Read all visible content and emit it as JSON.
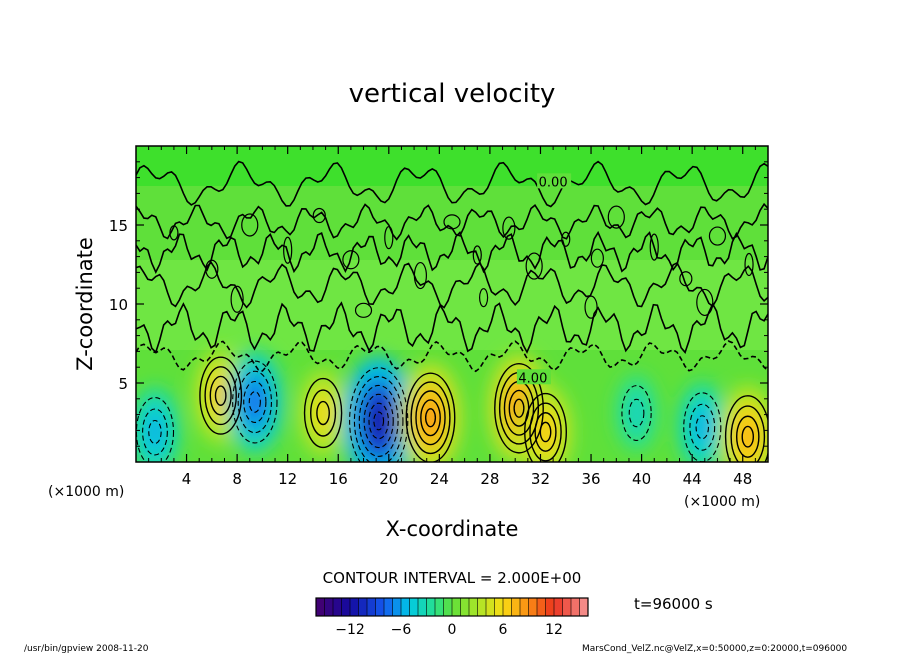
{
  "chart_data": {
    "type": "heatmap",
    "title": "vertical velocity",
    "xlabel": "X-coordinate",
    "ylabel": "Z-coordinate",
    "x_unit_left": "(×1000 m)",
    "x_unit_right": "(×1000 m)",
    "xlim": [
      0,
      50
    ],
    "ylim": [
      0,
      20
    ],
    "x_ticks": [
      4,
      8,
      12,
      16,
      20,
      24,
      28,
      32,
      36,
      40,
      44,
      48
    ],
    "y_ticks": [
      5,
      10,
      15
    ],
    "contour_interval_label": "CONTOUR INTERVAL = 2.000E+00",
    "contour_labels": [
      {
        "text": "0.00",
        "x": 33,
        "z": 17.7
      },
      {
        "text": "4.00",
        "x": 31.4,
        "z": 5.3
      }
    ],
    "time_label": "t=96000 s",
    "colorbar": {
      "min": -16,
      "max": 16,
      "ticks": [
        -12,
        -6,
        0,
        6,
        12
      ]
    },
    "cells": [
      {
        "x": 1.5,
        "z": 1.9,
        "value": -6
      },
      {
        "x": 6.7,
        "z": 4.2,
        "value": 7
      },
      {
        "x": 9.4,
        "z": 3.8,
        "value": -8
      },
      {
        "x": 14.8,
        "z": 3.1,
        "value": 6
      },
      {
        "x": 19.2,
        "z": 2.6,
        "value": -12
      },
      {
        "x": 23.3,
        "z": 2.8,
        "value": 9
      },
      {
        "x": 30.3,
        "z": 3.4,
        "value": 9
      },
      {
        "x": 32.4,
        "z": 1.9,
        "value": 7
      },
      {
        "x": 39.6,
        "z": 3.1,
        "value": -4
      },
      {
        "x": 44.8,
        "z": 2.2,
        "value": -6
      },
      {
        "x": 48.4,
        "z": 1.6,
        "value": 8
      }
    ]
  },
  "footer": {
    "left": "/usr/bin/gpview  2008-11-20",
    "right": "MarsCond_VelZ.nc@VelZ,x=0:50000,z=0:20000,t=096000"
  }
}
